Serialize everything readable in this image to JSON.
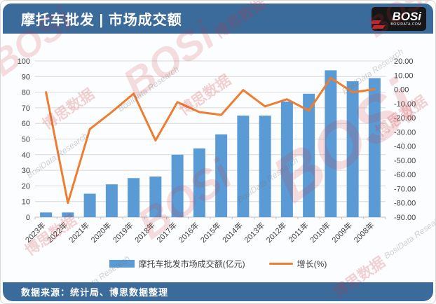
{
  "header": {
    "title": "摩托车批发 | 市场成交额",
    "logo": {
      "text": "BOSi",
      "sub": "BOSIDATA.COM"
    }
  },
  "footer": {
    "source": "数据来源：统计局、博思数据整理"
  },
  "watermark": {
    "logo": "BOSi",
    "cn": "博思数据",
    "en": "BosiData Research"
  },
  "chart_data": {
    "type": "bar",
    "subtype": "bar-line-combo",
    "categories": [
      "2023年",
      "2022年",
      "2021年",
      "2020年",
      "2019年",
      "2018年",
      "2017年",
      "2016年",
      "2015年",
      "2014年",
      "2013年",
      "2012年",
      "2011年",
      "2010年",
      "2009年",
      "2008年"
    ],
    "series": [
      {
        "name": "摩托车批发市场成交额(亿元)",
        "type": "bar",
        "axis": "left",
        "color": "#5b9bd5",
        "values": [
          3,
          3,
          15,
          21,
          25,
          26,
          40,
          44,
          53,
          65,
          65,
          74,
          79,
          94,
          87,
          89
        ]
      },
      {
        "name": "增长(%)",
        "type": "line",
        "axis": "right",
        "color": "#ed7d31",
        "values": [
          -2,
          -80,
          -28,
          -16,
          -3,
          -36,
          -9,
          -16,
          -18,
          -0.5,
          -12,
          -7,
          -15,
          8,
          -2,
          0
        ]
      }
    ],
    "left_axis": {
      "min": 0,
      "max": 100,
      "step": 10,
      "decimals": 0
    },
    "right_axis": {
      "min": -90,
      "max": 20,
      "step": 10,
      "decimals": 2
    },
    "grid": true,
    "legend_position": "bottom",
    "x_label_rotation": -45
  }
}
